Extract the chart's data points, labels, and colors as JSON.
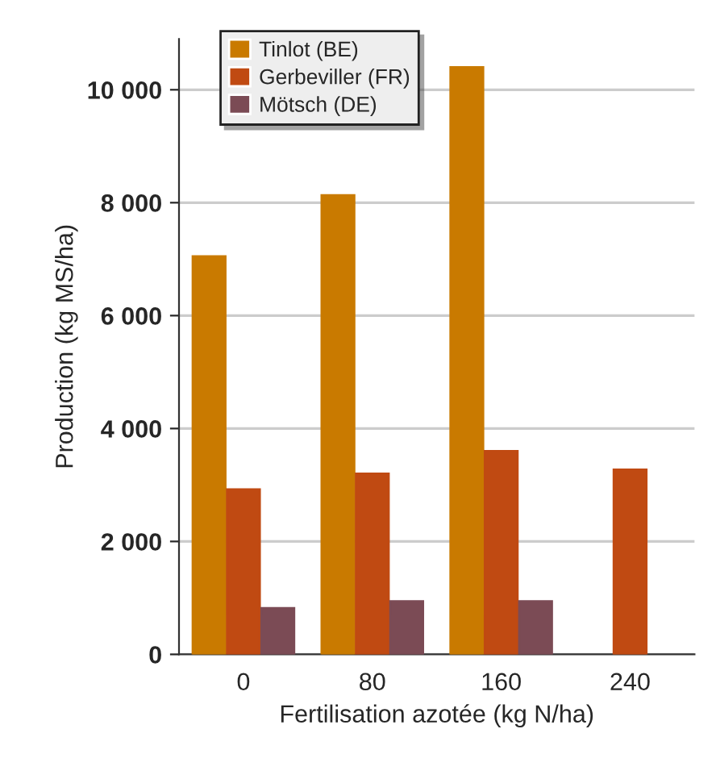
{
  "chart_data": {
    "type": "bar",
    "xlabel": "Fertilisation azotée (kg N/ha)",
    "ylabel": "Production (kg MS/ha)",
    "categories": [
      "0",
      "80",
      "160",
      "240"
    ],
    "series": [
      {
        "name": "Tinlot (BE)",
        "color": "#c97a00",
        "values": [
          7050,
          8130,
          10400,
          null
        ]
      },
      {
        "name": "Gerbeviller (FR)",
        "color": "#c04a12",
        "values": [
          2920,
          3200,
          3600,
          3270
        ]
      },
      {
        "name": "Mötsch (DE)",
        "color": "#7b4b55",
        "values": [
          820,
          940,
          940,
          null
        ]
      }
    ],
    "ylim": [
      0,
      10900
    ],
    "yticks": [
      {
        "value": 0,
        "label": "0"
      },
      {
        "value": 2000,
        "label": "2 000"
      },
      {
        "value": 4000,
        "label": "4 000"
      },
      {
        "value": 6000,
        "label": "6 000"
      },
      {
        "value": 8000,
        "label": "8 000"
      },
      {
        "value": 10000,
        "label": "10 000"
      }
    ],
    "grid": "y",
    "legend": "top left"
  }
}
